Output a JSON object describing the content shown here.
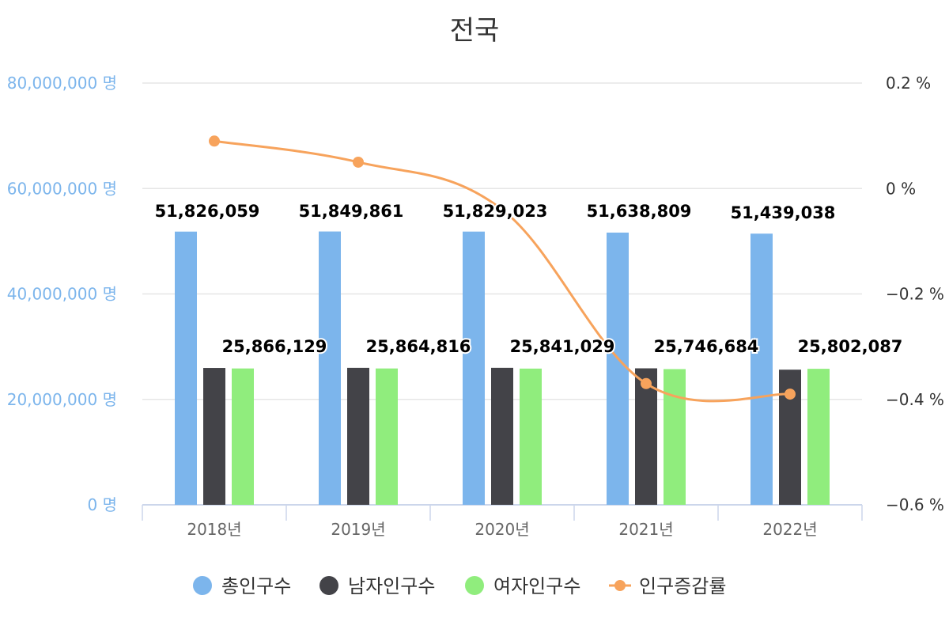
{
  "chart_data": {
    "type": "bar",
    "title": "전국",
    "categories": [
      "2018년",
      "2019년",
      "2020년",
      "2021년",
      "2022년"
    ],
    "series": [
      {
        "name": "총인구수",
        "type": "bar",
        "axis": "left",
        "color": "#7cb5ec",
        "values": [
          51826059,
          51849861,
          51829023,
          51638809,
          51439038
        ]
      },
      {
        "name": "남자인구수",
        "type": "bar",
        "axis": "left",
        "color": "#434348",
        "values": [
          25960000,
          25985000,
          25988000,
          25892000,
          25637000
        ]
      },
      {
        "name": "여자인구수",
        "type": "bar",
        "axis": "left",
        "color": "#90ed7d",
        "values": [
          25866129,
          25864816,
          25841029,
          25746684,
          25802087
        ]
      },
      {
        "name": "인구증감률",
        "type": "line",
        "axis": "right",
        "color": "#f7a35c",
        "values": [
          0.09,
          0.05,
          -0.04,
          -0.37,
          -0.39
        ]
      }
    ],
    "y_left": {
      "min": 0,
      "max": 80000000,
      "ticks": [
        0,
        20000000,
        40000000,
        60000000,
        80000000
      ],
      "tick_labels": [
        "0 명",
        "20,000,000 명",
        "40,000,000 명",
        "60,000,000 명",
        "80,000,000 명"
      ]
    },
    "y_right": {
      "min": -0.6,
      "max": 0.2,
      "ticks": [
        -0.6,
        -0.4,
        -0.2,
        0,
        0.2
      ],
      "tick_labels": [
        "−0.6 %",
        "−0.4 %",
        "−0.2 %",
        "0 %",
        "0.2 %"
      ]
    },
    "data_labels": {
      "총인구수": [
        "51,826,059",
        "51,849,861",
        "51,829,023",
        "51,638,809",
        "51,439,038"
      ],
      "여자인구수": [
        "25,866,129",
        "25,864,816",
        "25,841,029",
        "25,746,684",
        "25,802,087"
      ]
    },
    "grid": true,
    "legend_position": "bottom-center"
  }
}
